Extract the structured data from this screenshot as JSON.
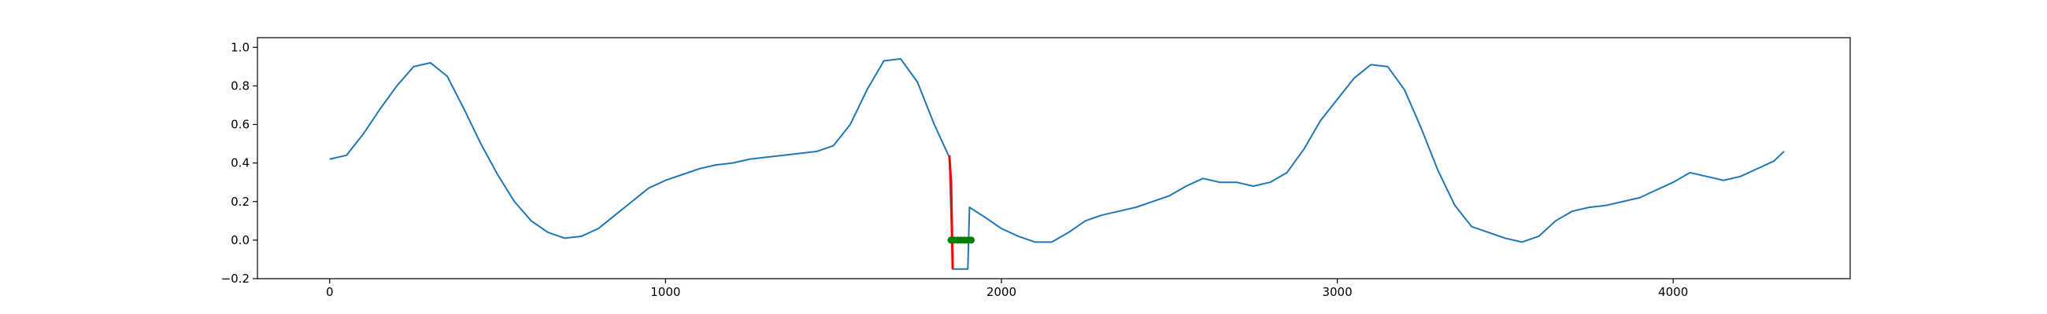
{
  "chart_data": {
    "type": "line",
    "xlim": [
      -215,
      4527
    ],
    "ylim": [
      -0.2,
      1.05
    ],
    "xticks": [
      0,
      1000,
      2000,
      3000,
      4000
    ],
    "yticks": [
      {
        "value": -0.2,
        "label": "−0.2"
      },
      {
        "value": 0,
        "label": "0.0"
      },
      0.2,
      0.4,
      0.6,
      0.8,
      {
        "value": 1,
        "label": "1.0"
      }
    ],
    "series": [
      {
        "color": "#1f77b4",
        "style": "line",
        "x": [
          0,
          50,
          100,
          150,
          200,
          250,
          300,
          350,
          400,
          450,
          500,
          550,
          600,
          650,
          700,
          750,
          800,
          850,
          900,
          950,
          1000,
          1050,
          1100,
          1150,
          1200,
          1250,
          1300,
          1350,
          1400,
          1450,
          1500,
          1550,
          1600,
          1650,
          1700,
          1750,
          1800,
          1845,
          1855,
          1900,
          1905,
          1950,
          2000,
          2050,
          2100,
          2150,
          2200,
          2250,
          2300,
          2350,
          2400,
          2450,
          2500,
          2550,
          2600,
          2650,
          2700,
          2750,
          2800,
          2850,
          2900,
          2950,
          3000,
          3050,
          3100,
          3150,
          3200,
          3250,
          3300,
          3350,
          3400,
          3450,
          3500,
          3550,
          3600,
          3650,
          3700,
          3750,
          3800,
          3850,
          3900,
          3950,
          4000,
          4050,
          4100,
          4150,
          4200,
          4250,
          4300,
          4330
        ],
        "values": [
          0.42,
          0.44,
          0.55,
          0.68,
          0.8,
          0.9,
          0.92,
          0.85,
          0.68,
          0.5,
          0.34,
          0.2,
          0.1,
          0.04,
          0.01,
          0.02,
          0.06,
          0.13,
          0.2,
          0.27,
          0.31,
          0.34,
          0.37,
          0.39,
          0.4,
          0.42,
          0.43,
          0.44,
          0.45,
          0.46,
          0.49,
          0.6,
          0.78,
          0.93,
          0.94,
          0.82,
          0.6,
          0.43,
          -0.15,
          -0.15,
          0.17,
          0.12,
          0.06,
          0.02,
          -0.01,
          -0.01,
          0.04,
          0.1,
          0.13,
          0.15,
          0.17,
          0.2,
          0.23,
          0.28,
          0.32,
          0.3,
          0.3,
          0.28,
          0.3,
          0.35,
          0.47,
          0.62,
          0.73,
          0.84,
          0.91,
          0.9,
          0.78,
          0.58,
          0.36,
          0.18,
          0.07,
          0.04,
          0.01,
          -0.01,
          0.02,
          0.1,
          0.15,
          0.17,
          0.18,
          0.2,
          0.22,
          0.26,
          0.3,
          0.35,
          0.33,
          0.31,
          0.33,
          0.37,
          0.41,
          0.46
        ]
      },
      {
        "color": "#ff0000",
        "style": "line",
        "x": [
          1845,
          1850,
          1855
        ],
        "values": [
          0.44,
          0.3,
          -0.15
        ]
      },
      {
        "color": "#008000",
        "style": "markers",
        "x": [
          1850,
          1860,
          1870,
          1880,
          1890,
          1900,
          1910
        ],
        "values": [
          0,
          0,
          0,
          0,
          0,
          0,
          0
        ]
      }
    ]
  }
}
